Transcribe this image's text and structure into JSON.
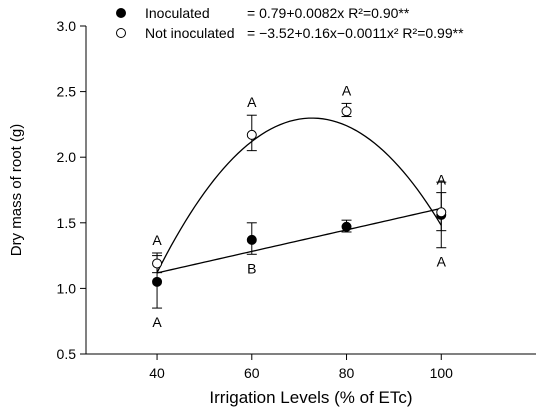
{
  "chart_data": {
    "type": "scatter",
    "xlabel": "Irrigation Levels (% of ETc)",
    "ylabel": "Dry mass of root (g)",
    "xlim": [
      25,
      120
    ],
    "ylim": [
      0.5,
      3.0
    ],
    "x_ticks": [
      40,
      60,
      80,
      100
    ],
    "y_ticks": [
      0.5,
      1.0,
      1.5,
      2.0,
      2.5,
      3.0
    ],
    "x_tick_labels": [
      "40",
      "60",
      "80",
      "100"
    ],
    "y_tick_labels": [
      "0.5",
      "1.0",
      "1.5",
      "2.0",
      "2.5",
      "3.0"
    ],
    "grid": false,
    "legend_position": "top-left",
    "series": [
      {
        "name": "Inoculated",
        "marker": "filled-circle",
        "equation": "= 0.79+0.0082x R²=0.90**",
        "fit": {
          "type": "linear",
          "coefficients": [
            0.79,
            0.0082
          ]
        },
        "points": [
          {
            "x": 40,
            "y": 1.05,
            "err_low": 0.85,
            "err_high": 1.25,
            "letter": "A",
            "letter_position": "below"
          },
          {
            "x": 60,
            "y": 1.37,
            "err_low": 1.26,
            "err_high": 1.5,
            "letter": "B",
            "letter_position": "below"
          },
          {
            "x": 80,
            "y": 1.47,
            "err_low": 1.43,
            "err_high": 1.52,
            "letter": "",
            "letter_position": "none"
          },
          {
            "x": 100,
            "y": 1.56,
            "err_low": 1.31,
            "err_high": 1.81,
            "letter": "A",
            "letter_position": "below"
          }
        ]
      },
      {
        "name": "Not inoculated",
        "marker": "open-circle",
        "equation": "= −3.52+0.16x−0.0011x² R²=0.99**",
        "fit": {
          "type": "quadratic",
          "coefficients": [
            -3.52,
            0.16,
            -0.0011
          ]
        },
        "points": [
          {
            "x": 40,
            "y": 1.19,
            "err_low": 1.12,
            "err_high": 1.27,
            "letter": "A",
            "letter_position": "above"
          },
          {
            "x": 60,
            "y": 2.17,
            "err_low": 2.05,
            "err_high": 2.32,
            "letter": "A",
            "letter_position": "above"
          },
          {
            "x": 80,
            "y": 2.35,
            "err_low": 2.31,
            "err_high": 2.41,
            "letter": "A",
            "letter_position": "above"
          },
          {
            "x": 100,
            "y": 1.58,
            "err_low": 1.44,
            "err_high": 1.73,
            "letter": "A",
            "letter_position": "above"
          }
        ]
      }
    ]
  }
}
